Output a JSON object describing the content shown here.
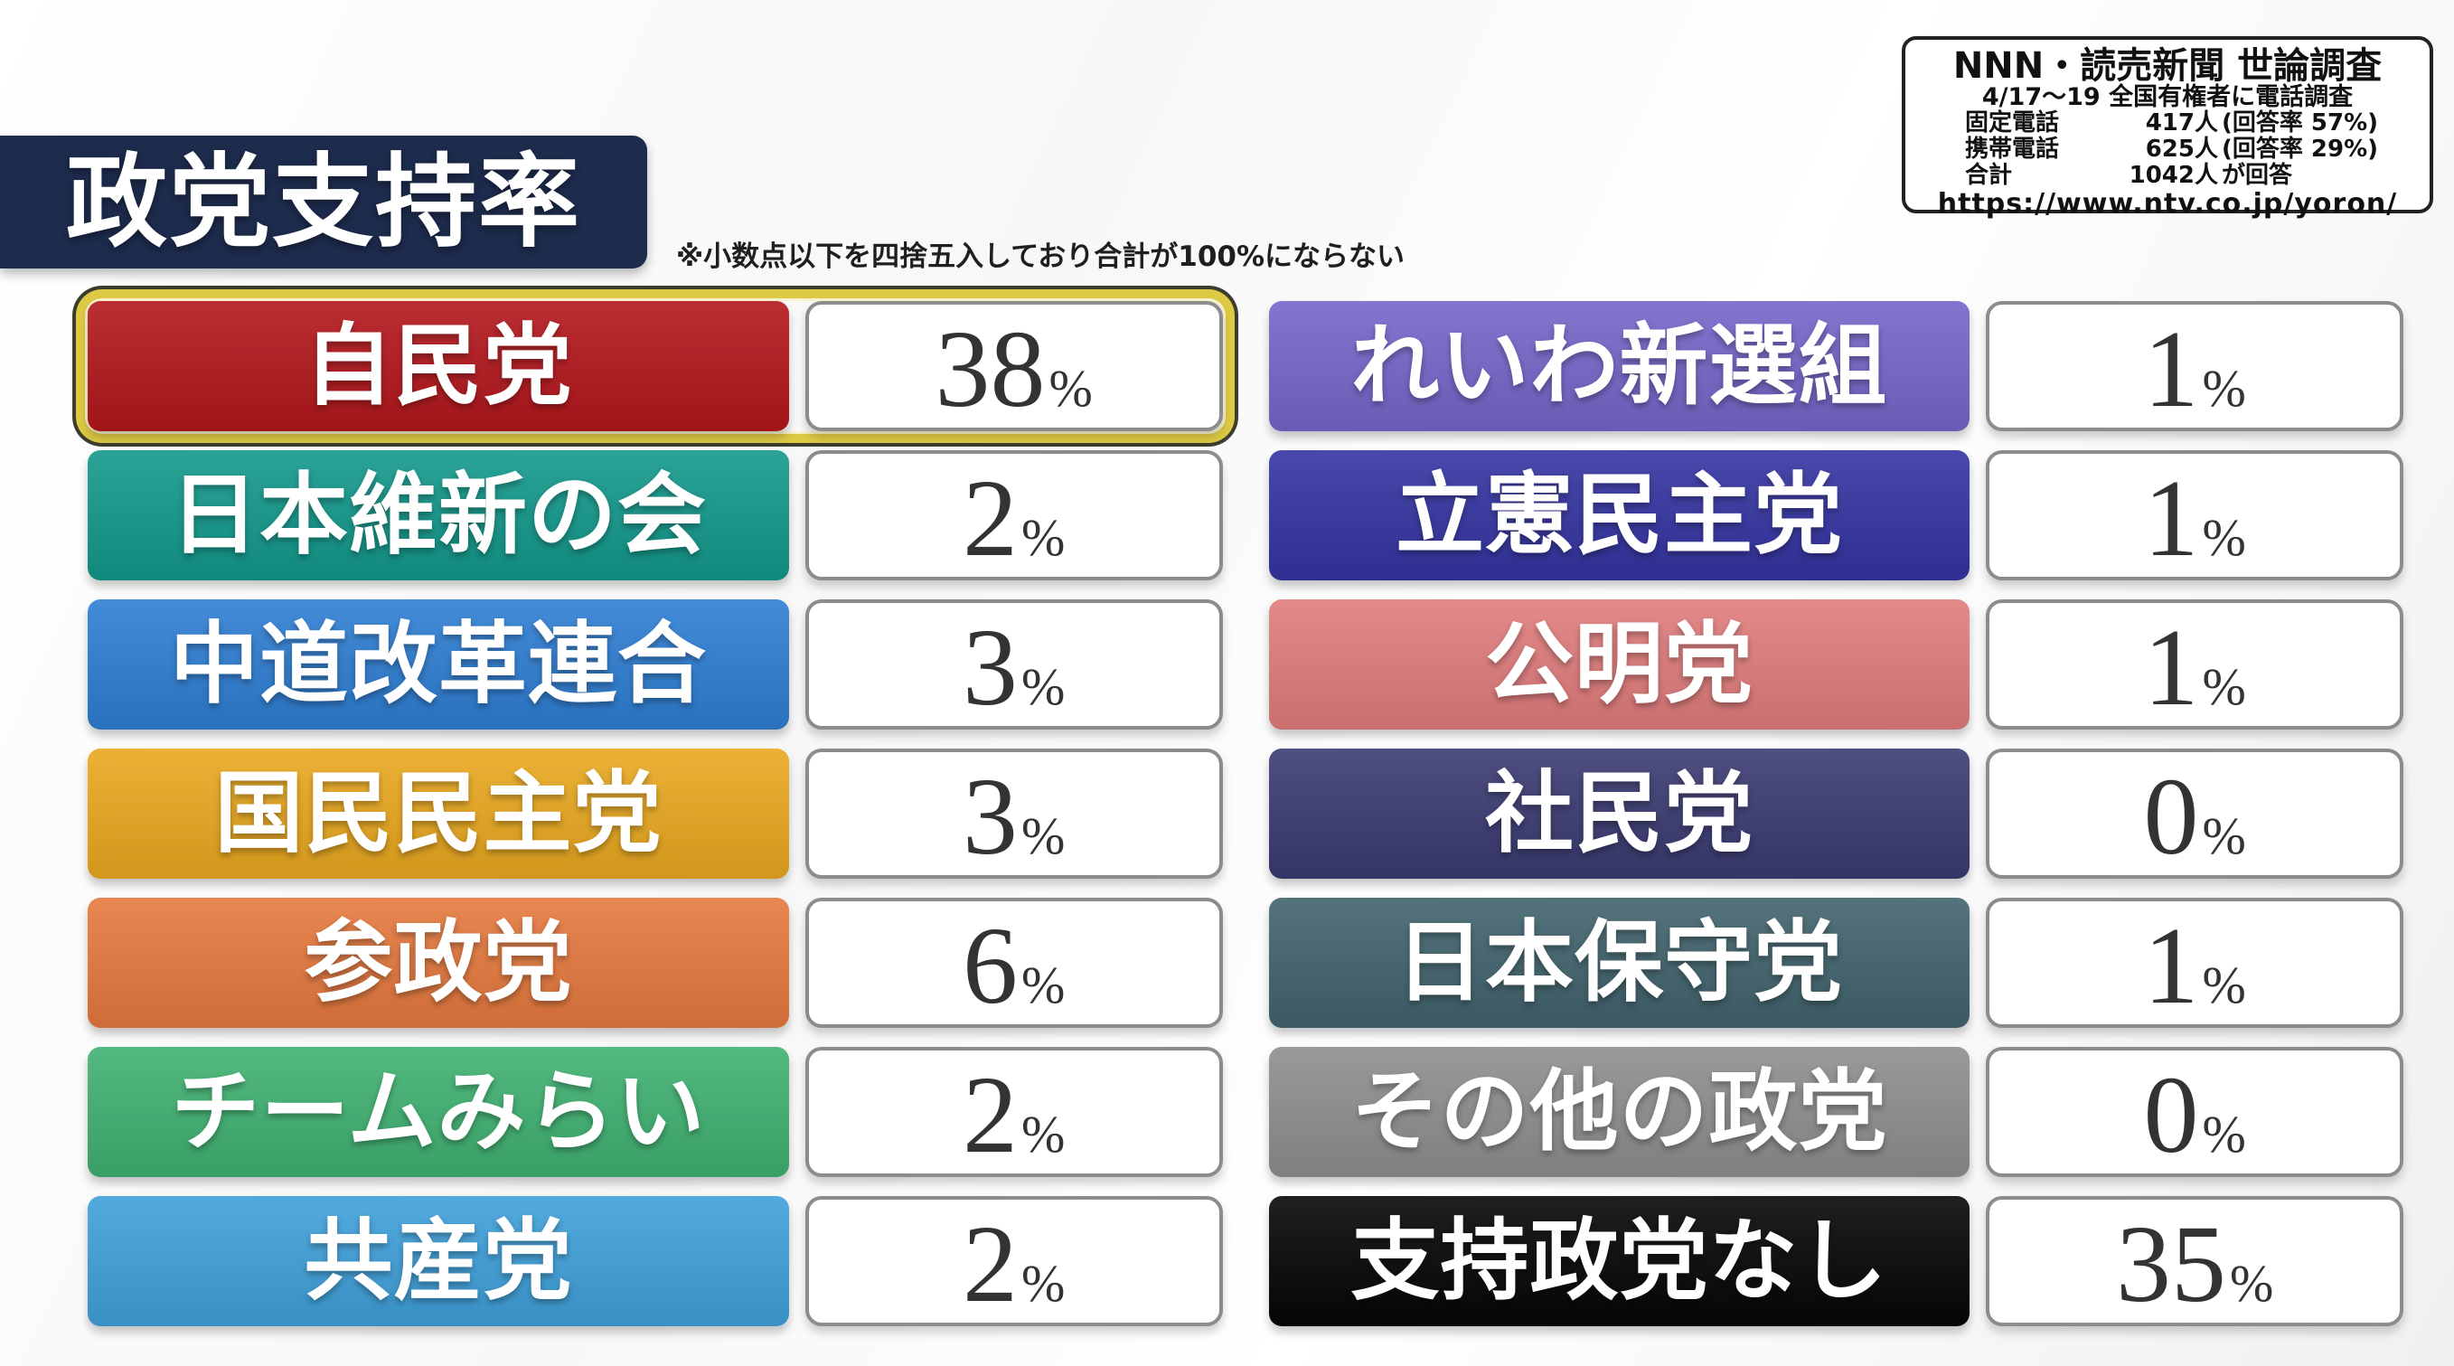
{
  "title": "政党支持率",
  "note": "※小数点以下を四捨五入しており合計が100%にならない",
  "unit": "%",
  "info_box": {
    "title": "NNN・読売新聞 世論調査",
    "subtitle": "4/17〜19 全国有権者に電話調査",
    "rows": [
      {
        "label": "固定電話",
        "value": "417人",
        "note": "(回答率 57%)"
      },
      {
        "label": "携帯電話",
        "value": "625人",
        "note": "(回答率 29%)"
      },
      {
        "label": "合計",
        "value": "1042人",
        "note": "が回答"
      }
    ],
    "url": "https://www.ntv.co.jp/yoron/"
  },
  "colors": {
    "title_bg": "#1d2b4c",
    "highlight_ring_gold": "#ddc944",
    "highlight_ring_dark": "#3d3d2e",
    "value_box_border": "#8c8c8c",
    "value_text": "#333333"
  },
  "parties": {
    "left": [
      {
        "name": "自民党",
        "value": 38,
        "color": "#b3171c",
        "highlight": true
      },
      {
        "name": "日本維新の会",
        "value": 2,
        "color": "#13988b",
        "highlight": false
      },
      {
        "name": "中道改革連合",
        "value": 3,
        "color": "#2e7ed3",
        "highlight": false
      },
      {
        "name": "国民民主党",
        "value": 3,
        "color": "#e9a81f",
        "highlight": false
      },
      {
        "name": "参政党",
        "value": 6,
        "color": "#e5793e",
        "highlight": false
      },
      {
        "name": "チームみらい",
        "value": 2,
        "color": "#3fb171",
        "highlight": false
      },
      {
        "name": "共産党",
        "value": 2,
        "color": "#3fa0da",
        "highlight": false
      }
    ],
    "right": [
      {
        "name": "れいわ新選組",
        "value": 1,
        "color": "#7466c9",
        "highlight": false
      },
      {
        "name": "立憲民主党",
        "value": 1,
        "color": "#3434a2",
        "highlight": false
      },
      {
        "name": "公明党",
        "value": 1,
        "color": "#e07c7c",
        "highlight": false
      },
      {
        "name": "社民党",
        "value": 0,
        "color": "#3a3a72",
        "highlight": false
      },
      {
        "name": "日本保守党",
        "value": 1,
        "color": "#41636d",
        "highlight": false
      },
      {
        "name": "その他の政党",
        "value": 0,
        "color": "#8e8e8e",
        "highlight": false
      },
      {
        "name": "支持政党なし",
        "value": 35,
        "color": "#060606",
        "highlight": false
      }
    ]
  },
  "chart_data": {
    "type": "table",
    "title": "政党支持率",
    "unit": "%",
    "categories": [
      "自民党",
      "日本維新の会",
      "中道改革連合",
      "国民民主党",
      "参政党",
      "チームみらい",
      "共産党",
      "れいわ新選組",
      "立憲民主党",
      "公明党",
      "社民党",
      "日本保守党",
      "その他の政党",
      "支持政党なし"
    ],
    "values": [
      38,
      2,
      3,
      3,
      6,
      2,
      2,
      1,
      1,
      1,
      0,
      1,
      0,
      35
    ],
    "highlighted_category": "自民党",
    "note": "※小数点以下を四捨五入しており合計が100%にならない",
    "survey": {
      "source": "NNN・読売新聞 世論調査",
      "period": "4/17〜19",
      "method": "全国有権者に電話調査",
      "fixed_phone": "417人(回答率 57%)",
      "mobile_phone": "625人(回答率 29%)",
      "total": "1042人が回答",
      "url": "https://www.ntv.co.jp/yoron/"
    }
  }
}
